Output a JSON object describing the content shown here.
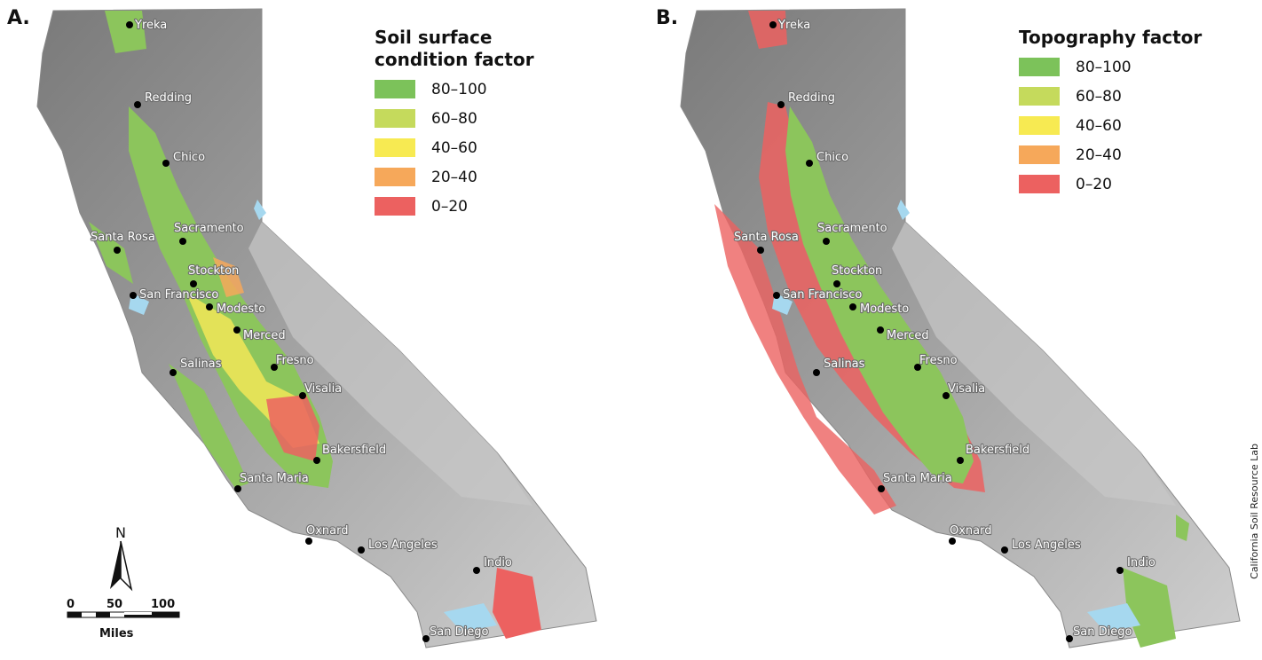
{
  "panels": [
    {
      "label": "A.",
      "legend": {
        "title": "Soil surface condition factor",
        "entries": [
          {
            "label": "80–100",
            "color": "#7cc25a"
          },
          {
            "label": "60–80",
            "color": "#c5da5c"
          },
          {
            "label": "40–60",
            "color": "#f7ea52"
          },
          {
            "label": "20–40",
            "color": "#f6a85a"
          },
          {
            "label": "0–20",
            "color": "#ec6160"
          }
        ]
      }
    },
    {
      "label": "B.",
      "legend": {
        "title": "Topography factor",
        "entries": [
          {
            "label": "80–100",
            "color": "#7cc25a"
          },
          {
            "label": "60–80",
            "color": "#c5da5c"
          },
          {
            "label": "40–60",
            "color": "#f7ea52"
          },
          {
            "label": "20–40",
            "color": "#f6a85a"
          },
          {
            "label": "0–20",
            "color": "#ec6160"
          }
        ]
      }
    }
  ],
  "cities": [
    "Yreka",
    "Redding",
    "Chico",
    "Sacramento",
    "Santa Rosa",
    "Stockton",
    "San Francisco",
    "Modesto",
    "Merced",
    "Fresno",
    "Salinas",
    "Visalia",
    "Bakersfield",
    "Santa Maria",
    "Oxnard",
    "Los Angeles",
    "Indio",
    "San Diego"
  ],
  "north_label": "N",
  "scale": {
    "ticks": [
      "0",
      "50",
      "100"
    ],
    "unit": "Miles"
  },
  "credit": "California Soil Resource Lab",
  "colors": {
    "terrain_dark": "#8f8f8f",
    "terrain_light": "#d4d4d4",
    "water": "#a6d8ef"
  }
}
